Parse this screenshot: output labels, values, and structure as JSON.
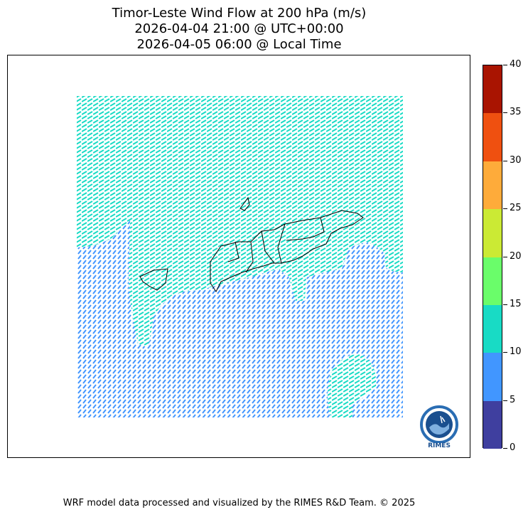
{
  "title": {
    "line1": "Timor-Leste Wind Flow at 200 hPa (m/s)",
    "line2": "2026-04-04 21:00 @ UTC+00:00",
    "line3": "2026-04-05 06:00 @ Local Time"
  },
  "credit": "WRF model data processed and visualized by the RIMES R&D Team. © 2025",
  "logo": {
    "text": "RIMES",
    "ring_color": "#2a6db3",
    "inner_color": "#1a4f8f"
  },
  "colorbar": {
    "bounds": [
      0,
      5,
      10,
      15,
      20,
      25,
      30,
      35,
      40
    ],
    "tick_labels": [
      "0",
      "5",
      "10",
      "15",
      "20",
      "25",
      "30",
      "35",
      "40"
    ],
    "colors": [
      "#3f3f9f",
      "#4196ff",
      "#18dbc5",
      "#6afd6a",
      "#cbea34",
      "#feab3a",
      "#ef5010",
      "#a91401"
    ]
  },
  "chart_data": {
    "type": "heatmap",
    "title": "Timor-Leste Wind Flow at 200 hPa (m/s)",
    "subtitle": [
      "2026-04-04 21:00 @ UTC+00:00",
      "2026-04-05 06:00 @ Local Time"
    ],
    "variable": "wind speed (m/s) with direction barbs",
    "value_range": [
      0,
      40
    ],
    "dominant_classes": [
      {
        "range": "5-10",
        "color": "#4196ff",
        "region": "south and west"
      },
      {
        "range": "10-15",
        "color": "#18dbc5",
        "region": "north"
      }
    ],
    "grid": false,
    "legend": "colorbar-right"
  }
}
